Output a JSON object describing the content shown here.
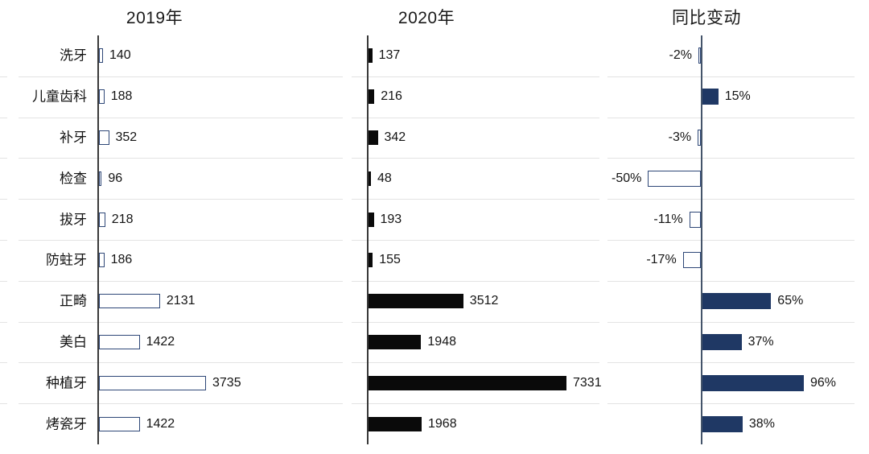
{
  "chart_data": {
    "type": "bar",
    "orientation": "horizontal",
    "legend": "none",
    "value_axis_hidden": true,
    "gridline_color": "#e3e3e3",
    "categories": [
      "洗牙",
      "儿童齿科",
      "补牙",
      "检查",
      "拔牙",
      "防蛀牙",
      "正畸",
      "美白",
      "种植牙",
      "烤瓷牙"
    ],
    "series": [
      {
        "name": "2019年",
        "values": [
          140,
          188,
          352,
          96,
          218,
          186,
          2131,
          1422,
          3735,
          1422
        ],
        "labels": [
          "140",
          "188",
          "352",
          "96",
          "218",
          "186",
          "2131",
          "1422",
          "3735",
          "1422"
        ],
        "bar_style": "outline",
        "fill": "#ffffff",
        "border": "#2e4777",
        "axis_color": "#3a3a3a"
      },
      {
        "name": "2020年",
        "values": [
          137,
          216,
          342,
          48,
          193,
          155,
          3512,
          1948,
          7331,
          1968
        ],
        "labels": [
          "137",
          "216",
          "342",
          "48",
          "193",
          "155",
          "3512",
          "1948",
          "7331",
          "1968"
        ],
        "bar_style": "solid",
        "fill": "#0a0a0a",
        "axis_color": "#3a3a3a"
      },
      {
        "name": "同比变动",
        "values": [
          -2,
          15,
          -3,
          -50,
          -11,
          -17,
          65,
          37,
          96,
          38
        ],
        "labels": [
          "-2%",
          "15%",
          "-3%",
          "-50%",
          "-11%",
          "-17%",
          "65%",
          "37%",
          "96%",
          "38%"
        ],
        "bar_style": "signed",
        "positive_fill": "#1f3864",
        "negative_fill": "#ffffff",
        "negative_border": "#2e4777",
        "axis_color": "#44546a"
      }
    ]
  }
}
